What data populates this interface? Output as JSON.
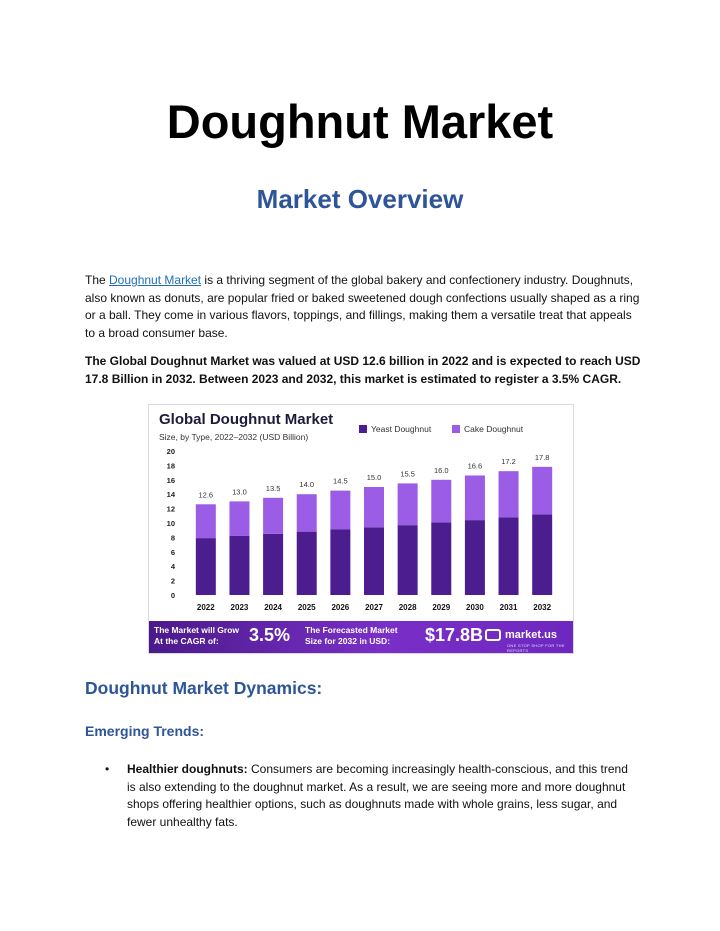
{
  "document": {
    "title": "Doughnut Market",
    "subtitle": "Market Overview",
    "intro": {
      "prefix": "The ",
      "link_text": "Doughnut Market",
      "suffix": " is a thriving segment of the global bakery and confectionery industry. Doughnuts, also known as donuts, are popular fried or baked sweetened dough confections usually shaped as a ring or a ball. They come in various flavors, toppings, and fillings, making them a versatile treat that appeals to a broad consumer base."
    },
    "summary": "The Global Doughnut Market was valued at USD 12.6 billion in 2022 and is expected to reach USD 17.8 Billion in 2032. Between 2023 and 2032, this market is estimated to register a 3.5% CAGR.",
    "dynamics_heading": "Doughnut Market Dynamics:",
    "trends_heading": "Emerging Trends:",
    "bullets": [
      {
        "bold": "Healthier doughnuts:",
        "text": " Consumers are becoming increasingly health-conscious, and this trend is also extending to the doughnut market. As a result, we are seeing more and more doughnut shops offering healthier options, such as doughnuts made with whole grains, less sugar, and fewer unhealthy fats."
      }
    ]
  },
  "infographic": {
    "title": "Global Doughnut Market",
    "subtitle": "Size, by Type, 2022–2032 (USD Billion)",
    "banner": {
      "cagr_label": "The Market will Grow At the CAGR of:",
      "cagr_value": "3.5%",
      "forecast_label": "The Forecasted Market Size for 2032 in USD:",
      "forecast_value": "$17.8B",
      "brand": "market.us",
      "brand_tagline": "ONE STOP SHOP FOR THE REPORTS"
    }
  },
  "colors": {
    "yeast": "#4b1d8f",
    "cake": "#9b5de5",
    "heading": "#2e5597"
  },
  "chart_data": {
    "type": "bar",
    "title": "Global Doughnut Market",
    "subtitle": "Size, by Type, 2022–2032 (USD Billion)",
    "categories": [
      "2022",
      "2023",
      "2024",
      "2025",
      "2026",
      "2027",
      "2028",
      "2029",
      "2030",
      "2031",
      "2032"
    ],
    "totals": [
      12.6,
      13.0,
      13.5,
      14.0,
      14.5,
      15.0,
      15.5,
      16.0,
      16.6,
      17.2,
      17.8
    ],
    "total_labels": [
      "12.6",
      "13.0",
      "13.5",
      "14.0",
      "14.5",
      "15.0",
      "15.5",
      "16.0",
      "16.6",
      "17.2",
      "17.8"
    ],
    "series": [
      {
        "name": "Yeast Doughnut",
        "values": [
          7.9,
          8.2,
          8.5,
          8.8,
          9.1,
          9.4,
          9.7,
          10.1,
          10.4,
          10.8,
          11.2
        ]
      },
      {
        "name": "Cake Doughnut",
        "values": [
          4.7,
          4.8,
          5.0,
          5.2,
          5.4,
          5.6,
          5.8,
          5.9,
          6.2,
          6.4,
          6.6
        ]
      }
    ],
    "yticks": [
      "0",
      "2",
      "4",
      "6",
      "8",
      "10",
      "12",
      "14",
      "16",
      "18",
      "20"
    ],
    "ylim": [
      0,
      20
    ],
    "stacked": true,
    "legend": "top-right"
  }
}
